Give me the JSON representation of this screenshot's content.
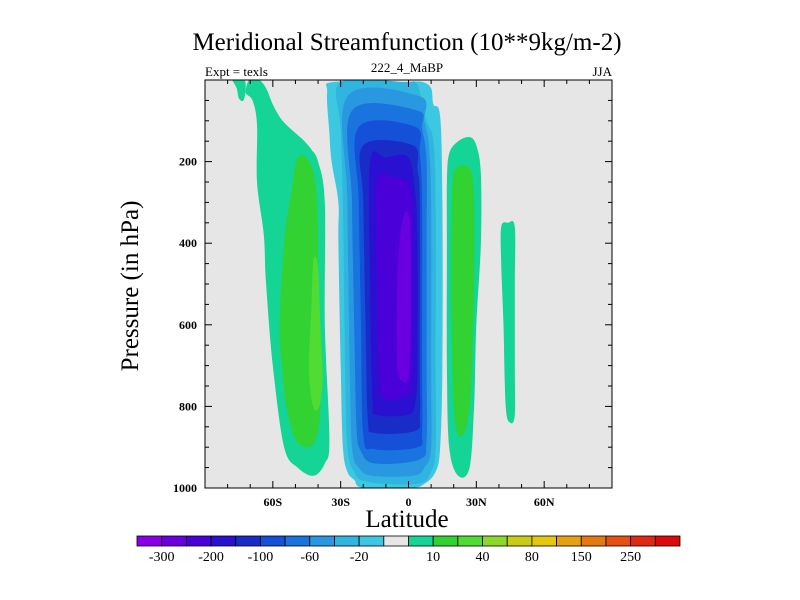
{
  "chart_data": {
    "type": "heatmap",
    "title": "Meridional Streamfunction (10**9kg/m-2)",
    "left_string": "Expt = texls",
    "center_string": "222_4_MaBP",
    "right_string": "JJA",
    "xlabel": "Latitude",
    "ylabel": "Pressure (in hPa)",
    "xlim": [
      -90,
      90
    ],
    "ylim": [
      0,
      1000
    ],
    "y_inverted": true,
    "x_ticks": [
      {
        "value": -60,
        "label": "60S"
      },
      {
        "value": -30,
        "label": "30S"
      },
      {
        "value": 0,
        "label": "0"
      },
      {
        "value": 30,
        "label": "30N"
      },
      {
        "value": 60,
        "label": "60N"
      }
    ],
    "y_ticks": [
      {
        "value": 200,
        "label": "200"
      },
      {
        "value": 400,
        "label": "400"
      },
      {
        "value": 600,
        "label": "600"
      },
      {
        "value": 800,
        "label": "800"
      },
      {
        "value": 1000,
        "label": "1000"
      }
    ],
    "background_color": "#e6e6e6",
    "colorbar": {
      "colors": [
        "#8a00e6",
        "#6a00e0",
        "#4a00d8",
        "#2a10d0",
        "#1a2cc8",
        "#1450d8",
        "#1a74e0",
        "#2a98e0",
        "#30b4e0",
        "#3cc8e0",
        "#e6e6e6",
        "#14d496",
        "#32d232",
        "#50dc32",
        "#8cd828",
        "#c8cc14",
        "#e6c80a",
        "#e6a014",
        "#e67814",
        "#e65014",
        "#e02814",
        "#dc0a0a"
      ],
      "tick_labels": [
        "-300",
        "-200",
        "-100",
        "-60",
        "-20",
        "10",
        "40",
        "80",
        "150",
        "250"
      ]
    },
    "contours": [
      {
        "level": -10,
        "color": "#3cc8e0",
        "points": [
          [
            -33,
            5
          ],
          [
            -2,
            5
          ],
          [
            6,
            5
          ],
          [
            10,
            20
          ],
          [
            11,
            60
          ],
          [
            14,
            90
          ],
          [
            15,
            300
          ],
          [
            15,
            700
          ],
          [
            14,
            900
          ],
          [
            12,
            960
          ],
          [
            7,
            990
          ],
          [
            1,
            1000
          ],
          [
            -20,
            1000
          ],
          [
            -24,
            980
          ],
          [
            -27,
            960
          ],
          [
            -29,
            900
          ],
          [
            -30,
            700
          ],
          [
            -31,
            400
          ],
          [
            -31,
            300
          ],
          [
            -34,
            200
          ],
          [
            -35,
            130
          ],
          [
            -36,
            30
          ]
        ]
      },
      {
        "level": -20,
        "color": "#30b4e0",
        "points": [
          [
            -30,
            5
          ],
          [
            -2,
            5
          ],
          [
            3,
            5
          ],
          [
            5,
            30
          ],
          [
            8,
            100
          ],
          [
            11,
            150
          ],
          [
            12,
            300
          ],
          [
            12,
            700
          ],
          [
            12,
            900
          ],
          [
            10,
            960
          ],
          [
            4,
            990
          ],
          [
            -18,
            985
          ],
          [
            -24,
            960
          ],
          [
            -27,
            900
          ],
          [
            -28,
            700
          ],
          [
            -29,
            300
          ],
          [
            -30,
            120
          ]
        ]
      },
      {
        "level": -40,
        "color": "#2a98e0",
        "points": [
          [
            -27,
            40
          ],
          [
            5,
            40
          ],
          [
            7,
            100
          ],
          [
            9,
            160
          ],
          [
            10,
            300
          ],
          [
            10,
            700
          ],
          [
            10,
            900
          ],
          [
            7,
            950
          ],
          [
            2,
            970
          ],
          [
            -16,
            970
          ],
          [
            -22,
            950
          ],
          [
            -25,
            900
          ],
          [
            -26,
            700
          ],
          [
            -27,
            300
          ]
        ]
      },
      {
        "level": -60,
        "color": "#1a74e0",
        "points": [
          [
            -25,
            75
          ],
          [
            4,
            75
          ],
          [
            6,
            120
          ],
          [
            8,
            200
          ],
          [
            8,
            400
          ],
          [
            8,
            700
          ],
          [
            8,
            880
          ],
          [
            5,
            930
          ],
          [
            -15,
            940
          ],
          [
            -21,
            910
          ],
          [
            -23,
            850
          ],
          [
            -24,
            600
          ],
          [
            -25,
            300
          ]
        ]
      },
      {
        "level": -80,
        "color": "#1450d8",
        "points": [
          [
            -22,
            115
          ],
          [
            3,
            115
          ],
          [
            5,
            180
          ],
          [
            6,
            300
          ],
          [
            6,
            700
          ],
          [
            6,
            860
          ],
          [
            4,
            900
          ],
          [
            -15,
            905
          ],
          [
            -20,
            870
          ],
          [
            -21,
            600
          ],
          [
            -22,
            300
          ]
        ]
      },
      {
        "level": -100,
        "color": "#1a2cc8",
        "points": [
          [
            -20,
            160
          ],
          [
            2,
            160
          ],
          [
            4,
            220
          ],
          [
            5,
            300
          ],
          [
            5,
            700
          ],
          [
            5,
            820
          ],
          [
            3,
            860
          ],
          [
            -15,
            865
          ],
          [
            -18,
            830
          ],
          [
            -19,
            600
          ],
          [
            -20,
            300
          ]
        ]
      },
      {
        "level": -150,
        "color": "#2a10d0",
        "points": [
          [
            -17,
            200
          ],
          [
            -10,
            190
          ],
          [
            0,
            190
          ],
          [
            3,
            280
          ],
          [
            4,
            400
          ],
          [
            4,
            700
          ],
          [
            3,
            790
          ],
          [
            0,
            820
          ],
          [
            -14,
            820
          ],
          [
            -16,
            780
          ],
          [
            -17,
            500
          ]
        ]
      },
      {
        "level": -200,
        "color": "#4a00d8",
        "points": [
          [
            -14,
            250
          ],
          [
            -7,
            240
          ],
          [
            0,
            250
          ],
          [
            2,
            320
          ],
          [
            2,
            500
          ],
          [
            2,
            700
          ],
          [
            1,
            760
          ],
          [
            -3,
            780
          ],
          [
            -11,
            780
          ],
          [
            -13,
            740
          ],
          [
            -14,
            500
          ]
        ]
      },
      {
        "level": -250,
        "color": "#6a00e0",
        "points": [
          [
            -2,
            330
          ],
          [
            0,
            330
          ],
          [
            1,
            400
          ],
          [
            1,
            600
          ],
          [
            0,
            720
          ],
          [
            -2,
            740
          ],
          [
            -5,
            700
          ],
          [
            -5,
            500
          ],
          [
            -4,
            400
          ]
        ]
      },
      {
        "level": 10,
        "color": "#14d496",
        "points": [
          [
            -70,
            -5
          ],
          [
            -66,
            0
          ],
          [
            -63,
            20
          ],
          [
            -60,
            60
          ],
          [
            -57,
            90
          ],
          [
            -54,
            110
          ],
          [
            -50,
            130
          ],
          [
            -46,
            150
          ],
          [
            -43,
            170
          ],
          [
            -40,
            200
          ],
          [
            -37,
            300
          ],
          [
            -37,
            600
          ],
          [
            -35,
            880
          ],
          [
            -37,
            940
          ],
          [
            -42,
            970
          ],
          [
            -49,
            950
          ],
          [
            -55,
            900
          ],
          [
            -60,
            700
          ],
          [
            -63,
            500
          ],
          [
            -64,
            380
          ],
          [
            -67,
            250
          ],
          [
            -67,
            110
          ],
          [
            -69,
            50
          ],
          [
            -72,
            30
          ]
        ]
      },
      {
        "level": 10,
        "color": "#14d496",
        "points": [
          [
            -78,
            -5
          ],
          [
            -73,
            -5
          ],
          [
            -72,
            20
          ],
          [
            -73,
            50
          ],
          [
            -75,
            45
          ],
          [
            -76,
            20
          ]
        ]
      },
      {
        "level": 10,
        "color": "#14d496",
        "points": [
          [
            18,
            180
          ],
          [
            22,
            150
          ],
          [
            27,
            140
          ],
          [
            30,
            160
          ],
          [
            32,
            230
          ],
          [
            32,
            400
          ],
          [
            30,
            600
          ],
          [
            29,
            800
          ],
          [
            27,
            950
          ],
          [
            22,
            970
          ],
          [
            18,
            900
          ],
          [
            17,
            700
          ],
          [
            17,
            400
          ],
          [
            17,
            250
          ]
        ]
      },
      {
        "level": 10,
        "color": "#14d496",
        "points": [
          [
            41,
            360
          ],
          [
            44,
            350
          ],
          [
            47,
            360
          ],
          [
            47,
            500
          ],
          [
            47,
            700
          ],
          [
            47,
            820
          ],
          [
            45,
            840
          ],
          [
            43,
            800
          ],
          [
            42,
            600
          ],
          [
            41,
            450
          ]
        ]
      },
      {
        "level": 20,
        "color": "#32d232",
        "points": [
          [
            -49,
            190
          ],
          [
            -44,
            200
          ],
          [
            -41,
            260
          ],
          [
            -40,
            400
          ],
          [
            -40,
            600
          ],
          [
            -39,
            800
          ],
          [
            -41,
            880
          ],
          [
            -45,
            900
          ],
          [
            -50,
            880
          ],
          [
            -54,
            800
          ],
          [
            -56,
            700
          ],
          [
            -57,
            600
          ],
          [
            -55,
            400
          ],
          [
            -52,
            280
          ]
        ]
      },
      {
        "level": 20,
        "color": "#32d232",
        "points": [
          [
            20,
            230
          ],
          [
            25,
            210
          ],
          [
            28,
            230
          ],
          [
            29,
            300
          ],
          [
            29,
            500
          ],
          [
            28,
            700
          ],
          [
            27,
            800
          ],
          [
            25,
            860
          ],
          [
            22,
            870
          ],
          [
            20,
            800
          ],
          [
            19,
            600
          ],
          [
            19,
            350
          ]
        ]
      },
      {
        "level": 30,
        "color": "#50dc32",
        "points": [
          [
            -42,
            440
          ],
          [
            -40,
            460
          ],
          [
            -39,
            600
          ],
          [
            -38,
            720
          ],
          [
            -39,
            790
          ],
          [
            -41,
            810
          ],
          [
            -43,
            780
          ],
          [
            -44,
            700
          ],
          [
            -43,
            560
          ]
        ]
      }
    ]
  }
}
